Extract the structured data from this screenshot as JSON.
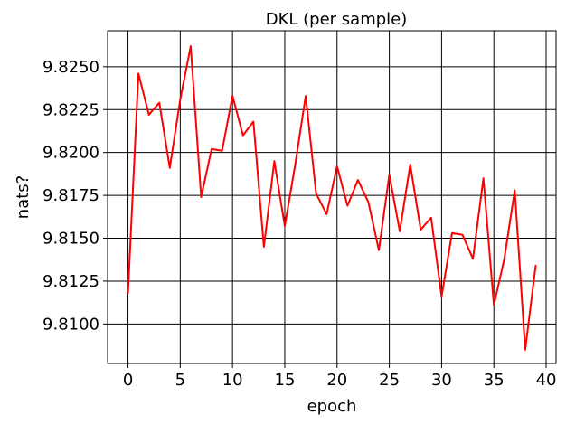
{
  "chart_data": {
    "type": "line",
    "title": "DKL (per sample)",
    "xlabel": "epoch",
    "ylabel": "nats?",
    "xlim": [
      -1.95,
      40.95
    ],
    "ylim": [
      9.8077,
      9.8271
    ],
    "xticks": [
      0,
      5,
      10,
      15,
      20,
      25,
      30,
      35,
      40
    ],
    "yticks": [
      9.81,
      9.8125,
      9.815,
      9.8175,
      9.82,
      9.8225,
      9.825
    ],
    "xtick_labels": [
      "0",
      "5",
      "10",
      "15",
      "20",
      "25",
      "30",
      "35",
      "40"
    ],
    "ytick_labels": [
      "9.8100",
      "9.8125",
      "9.8150",
      "9.8175",
      "9.8200",
      "9.8225",
      "9.8250"
    ],
    "grid": true,
    "series": [
      {
        "color": "#ff0000",
        "x": [
          0,
          1,
          2,
          3,
          4,
          5,
          6,
          7,
          8,
          9,
          10,
          11,
          12,
          13,
          14,
          15,
          16,
          17,
          18,
          19,
          20,
          21,
          22,
          23,
          24,
          25,
          26,
          27,
          28,
          29,
          30,
          31,
          32,
          33,
          34,
          35,
          36,
          37,
          38,
          39
        ],
        "y": [
          9.8118,
          9.8246,
          9.8222,
          9.8229,
          9.8191,
          9.8231,
          9.8262,
          9.8174,
          9.8202,
          9.8201,
          9.8233,
          9.821,
          9.8218,
          9.8145,
          9.8195,
          9.8157,
          9.8193,
          9.8233,
          9.8176,
          9.8164,
          9.8192,
          9.8169,
          9.8184,
          9.8171,
          9.8143,
          9.8187,
          9.8154,
          9.8193,
          9.8155,
          9.8162,
          9.8116,
          9.8153,
          9.8152,
          9.8138,
          9.8185,
          9.8111,
          9.8138,
          9.8178,
          9.8085,
          9.8134
        ]
      }
    ]
  }
}
